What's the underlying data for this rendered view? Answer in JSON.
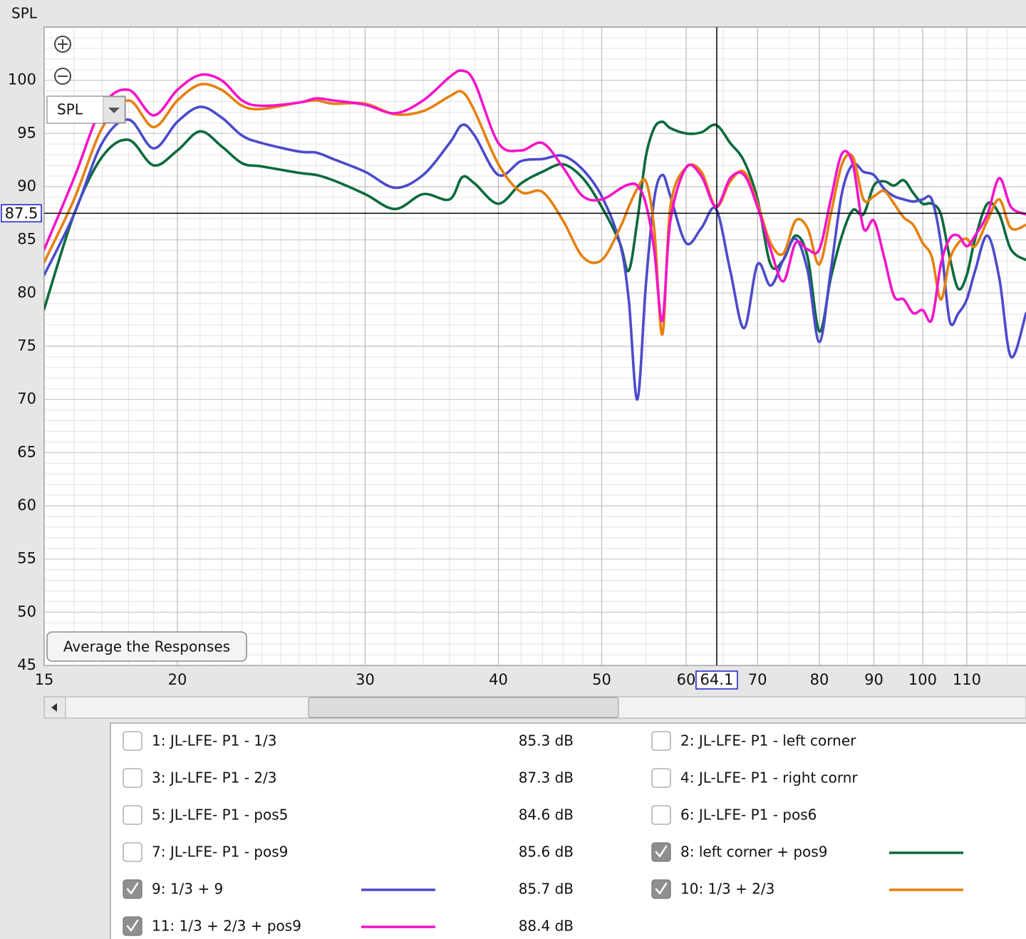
{
  "chart_data": {
    "type": "line",
    "ylabel": "SPL",
    "xscale": "log",
    "xlim": [
      15,
      125
    ],
    "ylim": [
      45,
      105
    ],
    "xticks": [
      15,
      20,
      30,
      40,
      50,
      60,
      70,
      80,
      90,
      100,
      110
    ],
    "yticks": [
      45,
      50,
      55,
      60,
      65,
      70,
      75,
      80,
      85,
      90,
      95,
      100
    ],
    "xminorticks": [
      16,
      17,
      18,
      19,
      21,
      22,
      23,
      24,
      25,
      26,
      27,
      28,
      29,
      32,
      34,
      36,
      38,
      42,
      44,
      46,
      48,
      55,
      65,
      75,
      85,
      95,
      105,
      115,
      120
    ],
    "yminorticks": [
      46,
      47,
      48,
      49,
      51,
      52,
      53,
      54,
      56,
      57,
      58,
      59,
      61,
      62,
      63,
      64,
      66,
      67,
      68,
      69,
      71,
      72,
      73,
      74,
      76,
      77,
      78,
      79,
      81,
      82,
      83,
      84,
      86,
      87,
      88,
      89,
      91,
      92,
      93,
      94,
      96,
      97,
      98,
      99,
      101,
      102,
      103,
      104
    ],
    "grid": true,
    "cursor": {
      "x": 64.1,
      "y": 87.5
    },
    "x": [
      15,
      16,
      17,
      18,
      19,
      20,
      21,
      22,
      23,
      24,
      26,
      27,
      28,
      30,
      32,
      34,
      36,
      37,
      38,
      40,
      42,
      44,
      46,
      48,
      50,
      52,
      53,
      54,
      55,
      56,
      57,
      58,
      60,
      62,
      64,
      66,
      68,
      70,
      72,
      74,
      76,
      78,
      80,
      82,
      84,
      86,
      88,
      90,
      92,
      94,
      96,
      98,
      100,
      102,
      104,
      106,
      108,
      110,
      112,
      115,
      118,
      121,
      125
    ],
    "series": [
      {
        "name": "1: JL-LFE- P1 - 1/3",
        "color": "#c0001a",
        "visible": false,
        "level": "85.3 dB"
      },
      {
        "name": "2: JL-LFE- P1 - left corner",
        "color": "#0a6b3a",
        "visible": false
      },
      {
        "name": "3: JL-LFE- P1 - 2/3",
        "color": "#5050c8",
        "visible": false,
        "level": "87.3 dB"
      },
      {
        "name": "4: JL-LFE- P1 - right cornr",
        "color": "#e8780c",
        "visible": false
      },
      {
        "name": "5: JL-LFE- P1 - pos5",
        "color": "#1e9a1e",
        "visible": false,
        "level": "84.6 dB"
      },
      {
        "name": "6: JL-LFE- P1 - pos6",
        "color": "#1f6cc4",
        "visible": false
      },
      {
        "name": "7: JL-LFE- P1 - pos9",
        "color": "#9a5a16",
        "visible": false,
        "level": "85.6 dB"
      },
      {
        "name": "8: left corner + pos9",
        "color": "#0b6a3c",
        "visible": true,
        "values": [
          78.5,
          87.4,
          92.8,
          94.4,
          92.0,
          93.4,
          95.2,
          93.8,
          92.2,
          91.9,
          91.3,
          91.1,
          90.6,
          89.3,
          87.9,
          89.3,
          88.8,
          90.9,
          90.3,
          88.4,
          90.3,
          91.4,
          92.1,
          90.8,
          88.1,
          84.7,
          82.1,
          86.8,
          92.8,
          95.5,
          96.1,
          95.5,
          95.0,
          95.1,
          95.8,
          94.1,
          92.4,
          88.8,
          82.7,
          83.1,
          85.4,
          83.4,
          76.4,
          81.4,
          85.4,
          87.8,
          87.4,
          90.1,
          90.5,
          90.1,
          90.6,
          89.4,
          88.4,
          88.4,
          87.4,
          83.4,
          80.4,
          81.7,
          85.1,
          88.4,
          87.4,
          84.1,
          83.1
        ]
      },
      {
        "name": "9: 1/3 + 9",
        "color": "#4b4bcc",
        "visible": true,
        "level": "85.7 dB",
        "values": [
          81.7,
          87.4,
          94.1,
          96.3,
          93.6,
          96.1,
          97.5,
          96.5,
          94.8,
          94.1,
          93.3,
          93.2,
          92.6,
          91.4,
          89.9,
          91.1,
          94.1,
          95.8,
          94.8,
          91.1,
          92.4,
          92.6,
          92.9,
          91.6,
          89.1,
          84.7,
          79.4,
          70.0,
          80.7,
          88.8,
          91.1,
          89.1,
          84.7,
          86.1,
          87.9,
          82.1,
          76.7,
          82.7,
          80.7,
          83.1,
          85.1,
          82.1,
          75.4,
          82.1,
          89.4,
          92.1,
          91.4,
          91.1,
          89.8,
          89.1,
          88.8,
          88.6,
          88.8,
          88.8,
          84.7,
          77.4,
          78.1,
          79.4,
          82.1,
          85.4,
          81.4,
          74.0,
          78.1
        ]
      },
      {
        "name": "10: 1/3 + 2/3",
        "color": "#e6800e",
        "visible": true,
        "values": [
          82.9,
          88.8,
          95.5,
          98.1,
          95.6,
          98.1,
          99.6,
          99.1,
          97.6,
          97.3,
          97.9,
          98.1,
          97.8,
          97.8,
          96.8,
          97.1,
          98.5,
          98.9,
          97.1,
          92.1,
          89.5,
          89.5,
          86.8,
          83.4,
          83.1,
          86.1,
          88.1,
          89.8,
          90.5,
          86.1,
          76.1,
          88.1,
          91.8,
          91.4,
          88.1,
          90.5,
          91.4,
          88.4,
          84.7,
          83.7,
          86.8,
          86.1,
          82.7,
          87.4,
          92.1,
          92.8,
          88.8,
          89.1,
          89.6,
          88.4,
          87.1,
          86.4,
          84.7,
          83.4,
          79.4,
          83.1,
          84.7,
          85.1,
          84.4,
          86.8,
          88.8,
          86.1,
          86.4
        ]
      },
      {
        "name": "11: 1/3 + 2/3 + pos9",
        "color": "#f514c8",
        "visible": true,
        "level": "88.4 dB",
        "values": [
          84.1,
          90.8,
          97.5,
          99.1,
          96.7,
          99.1,
          100.5,
          100.0,
          98.1,
          97.6,
          97.9,
          98.3,
          98.1,
          97.7,
          96.9,
          98.1,
          100.3,
          100.9,
          99.8,
          94.1,
          93.4,
          94.1,
          91.8,
          89.1,
          88.8,
          89.8,
          90.2,
          90.1,
          88.4,
          84.1,
          77.4,
          86.8,
          91.8,
          91.0,
          88.1,
          90.8,
          91.1,
          88.1,
          84.1,
          81.1,
          84.7,
          84.1,
          84.1,
          88.8,
          93.1,
          92.1,
          86.1,
          86.8,
          83.4,
          79.7,
          79.4,
          78.1,
          78.4,
          77.5,
          82.7,
          85.1,
          85.4,
          84.4,
          85.4,
          87.4,
          90.8,
          88.1,
          87.4
        ]
      }
    ]
  },
  "controls": {
    "dropdown": "SPL",
    "button": "Average the Responses"
  }
}
